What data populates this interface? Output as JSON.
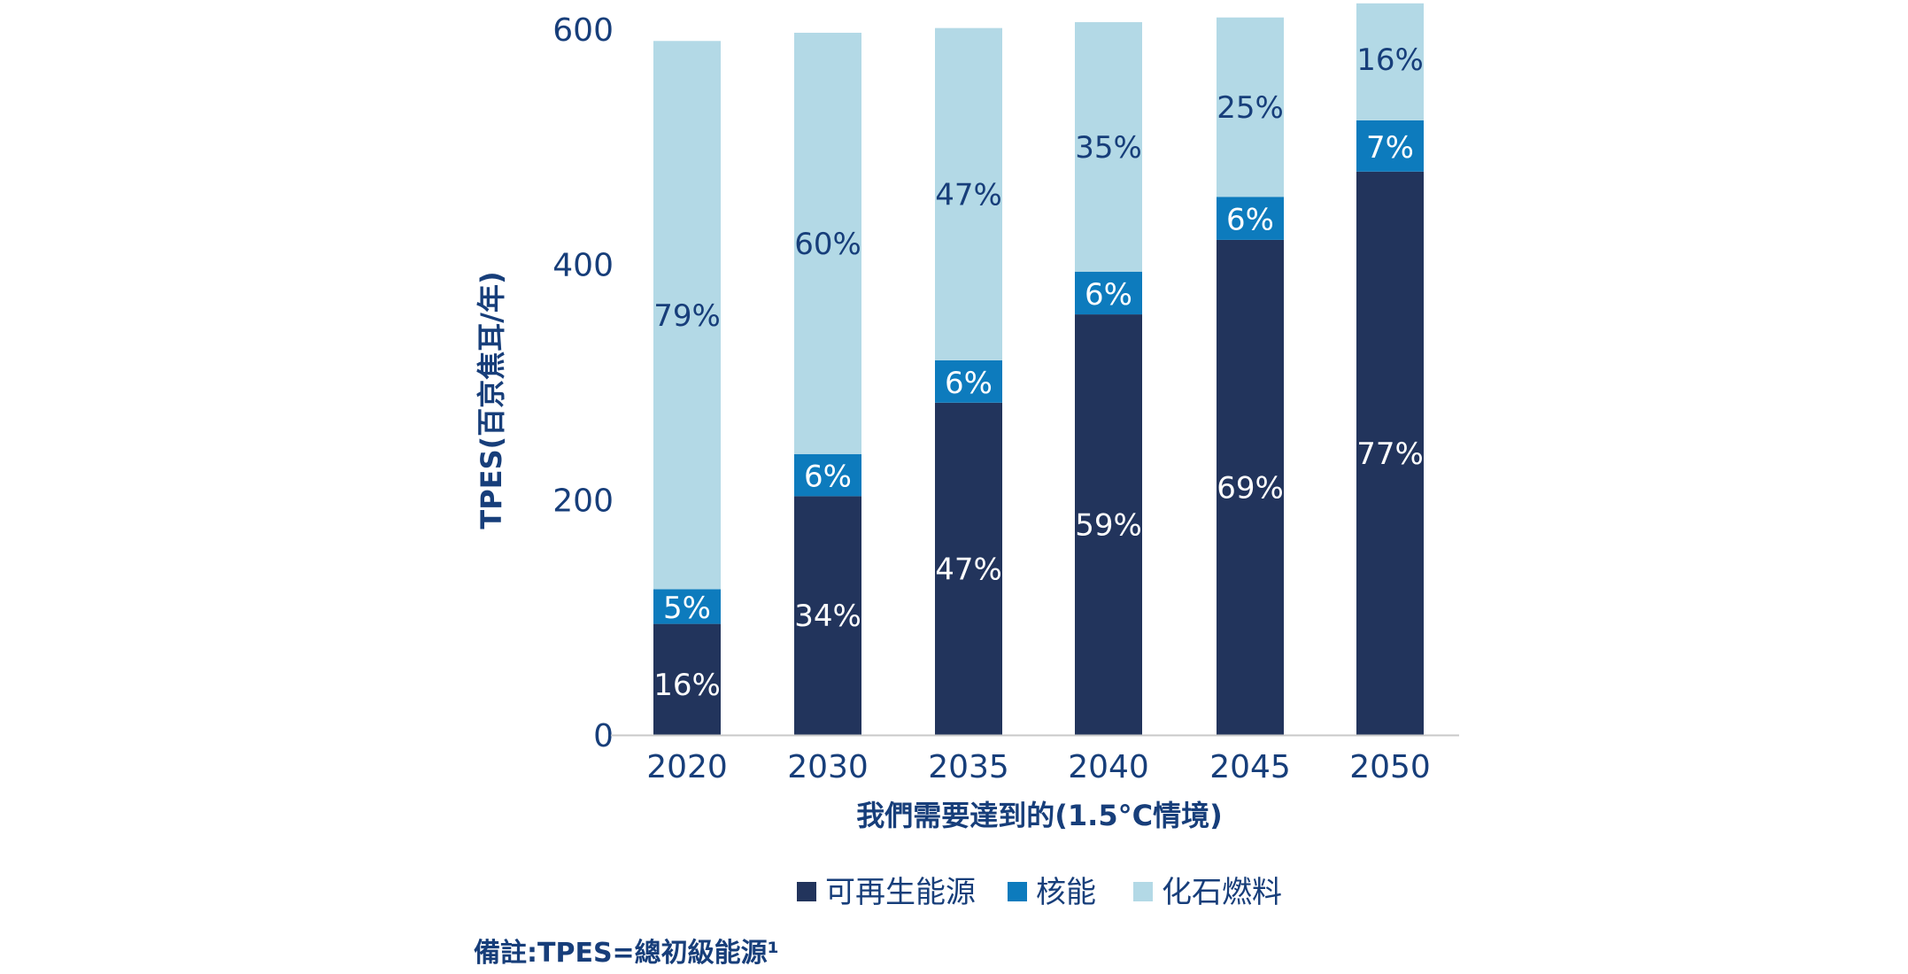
{
  "chart_data": {
    "type": "bar",
    "stacked": true,
    "title": "",
    "xlabel": "我們需要達到的(1.5°C情境)",
    "ylabel": "TPES(百京焦耳/年)",
    "ylim": [
      0,
      600
    ],
    "yticks": [
      0,
      200,
      400,
      600
    ],
    "categories": [
      "2020",
      "2030",
      "2035",
      "2040",
      "2045",
      "2050"
    ],
    "totals": [
      590,
      597,
      601,
      606,
      610,
      622
    ],
    "series": [
      {
        "name": "可再生能源",
        "color": "#22345c",
        "label_color": "#ffffff",
        "percent": [
          16,
          34,
          47,
          59,
          69,
          77
        ],
        "labels": [
          "16%",
          "34%",
          "47%",
          "59%",
          "69%",
          "77%"
        ]
      },
      {
        "name": "核能",
        "color": "#0d7bbd",
        "label_color": "#ffffff",
        "percent": [
          5,
          6,
          6,
          6,
          6,
          7
        ],
        "labels": [
          "5%",
          "6%",
          "6%",
          "6%",
          "6%",
          "7%"
        ]
      },
      {
        "name": "化石燃料",
        "color": "#b3d9e6",
        "label_color": "#173e7a",
        "percent": [
          79,
          60,
          47,
          35,
          25,
          16
        ],
        "labels": [
          "79%",
          "60%",
          "47%",
          "35%",
          "25%",
          "16%"
        ]
      }
    ],
    "legend": [
      "可再生能源",
      "核能",
      "化石燃料"
    ],
    "legend_position": "bottom-center",
    "note": "備註:TPES=總初級能源¹"
  }
}
